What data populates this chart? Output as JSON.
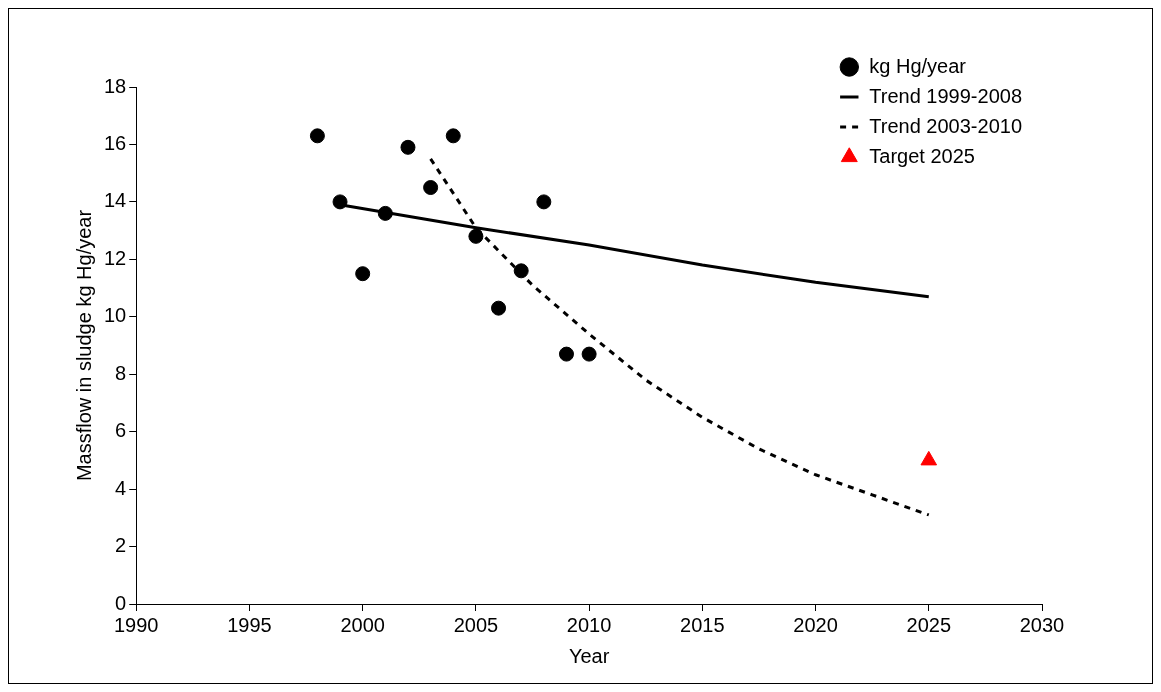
{
  "chart_data": {
    "type": "scatter",
    "xlabel": "Year",
    "ylabel": "Massflow in sludge kg Hg/year",
    "xlim": [
      1990,
      2030
    ],
    "xticks": [
      1990,
      1995,
      2000,
      2005,
      2010,
      2015,
      2020,
      2025,
      2030
    ],
    "ylim": [
      0,
      18
    ],
    "yticks": [
      0,
      2,
      4,
      6,
      8,
      10,
      12,
      14,
      16,
      18
    ],
    "grid": false,
    "legend": "top right",
    "series": [
      {
        "name": "kg Hg/year",
        "marker": "circle",
        "color": "#000000",
        "x": [
          1998,
          1999,
          2000,
          2001,
          2002,
          2003,
          2004,
          2005,
          2006,
          2007,
          2008,
          2009,
          2010
        ],
        "values": [
          16.3,
          14.0,
          11.5,
          13.6,
          15.9,
          14.5,
          16.3,
          12.8,
          10.3,
          11.6,
          14.0,
          8.7,
          8.7
        ]
      },
      {
        "name": "Trend 1999-2008",
        "type": "line",
        "marker": "none",
        "line_style": "solid",
        "color": "#000000",
        "x": [
          1999,
          2005,
          2010,
          2015,
          2020,
          2025
        ],
        "values": [
          13.9,
          13.1,
          12.5,
          11.8,
          11.2,
          10.7
        ]
      },
      {
        "name": "Trend 2003-2010",
        "type": "line",
        "marker": "none",
        "line_style": "dashed",
        "color": "#000000",
        "x": [
          2003,
          2005,
          2007.5,
          2010,
          2012.5,
          2015,
          2017.5,
          2020,
          2022.5,
          2025
        ],
        "values": [
          15.5,
          13.1,
          11.1,
          9.4,
          7.8,
          6.5,
          5.4,
          4.5,
          3.8,
          3.1
        ]
      },
      {
        "name": "Target 2025",
        "marker": "triangle",
        "color": "#ff0000",
        "x": [
          2025
        ],
        "values": [
          5.0
        ]
      }
    ]
  }
}
